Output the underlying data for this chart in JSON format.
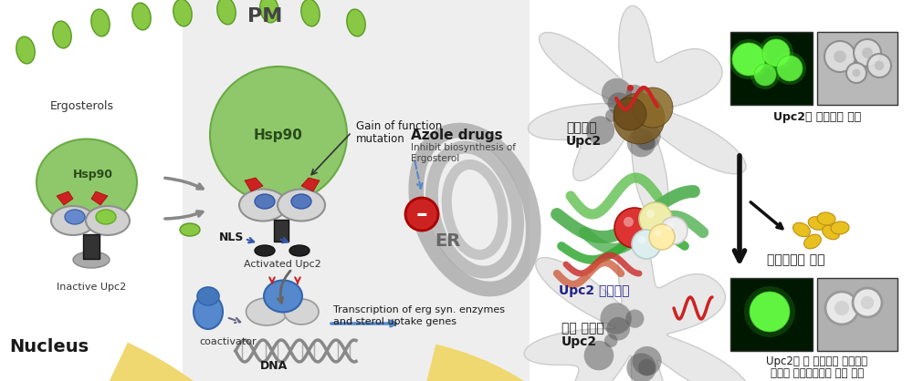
{
  "figsize": [
    10.0,
    4.18
  ],
  "dpi": 100,
  "background_color": "#ffffff",
  "pm_label": "PM",
  "er_label": "ER",
  "nucleus_label": "Nucleus",
  "ergosterols_label": "Ergosterols",
  "hsp90_label": "Hsp90",
  "inactive_upc2_label": "Inactive Upc2",
  "gain_label1": "Gain of function",
  "gain_label2": "mutation",
  "azole_label": "Azole drugs",
  "inhibit_label1": "Inhibit biosynthesis of",
  "inhibit_label2": "Ergosterol",
  "nls_label": "NLS",
  "activated_label": "Activated Upc2",
  "coactivator_label": "coactivator",
  "dna_label": "DNA",
  "transcription_label1": "Transcription of erg syn. enzymes",
  "transcription_label2": "and sterol uptake genes",
  "right_label1a": "비활성형",
  "right_label1b": "Upc2",
  "right_label2a": "Upc2 돌연변이",
  "right_label3a": "전사 활성형",
  "right_label3b": "Upc2",
  "side_label1": "Upc2가 세포질에 위치",
  "side_label2": "어고스테롤 해리",
  "side_label3a": "Upc2가 핵 내부에서 전사활성",
  "side_label3b": "진균의 아쇼항진균제 내성 증가",
  "pm_color": "#b8b8b8",
  "pm_inner_color": "#d8d8d8",
  "cell_bg_left": "#f5f5f5",
  "cell_bg_right_upper": "#e8e8e8",
  "nucleus_color": "#f0d870",
  "nucleus_edge": "#e0c050",
  "hsp90_green": "#8ec86a",
  "hsp90_edge": "#6aaa44",
  "erg_green": "#88c844",
  "erg_edge": "#5a9a22",
  "upc2_gray": "#c8c8c8",
  "upc2_edge": "#909090"
}
